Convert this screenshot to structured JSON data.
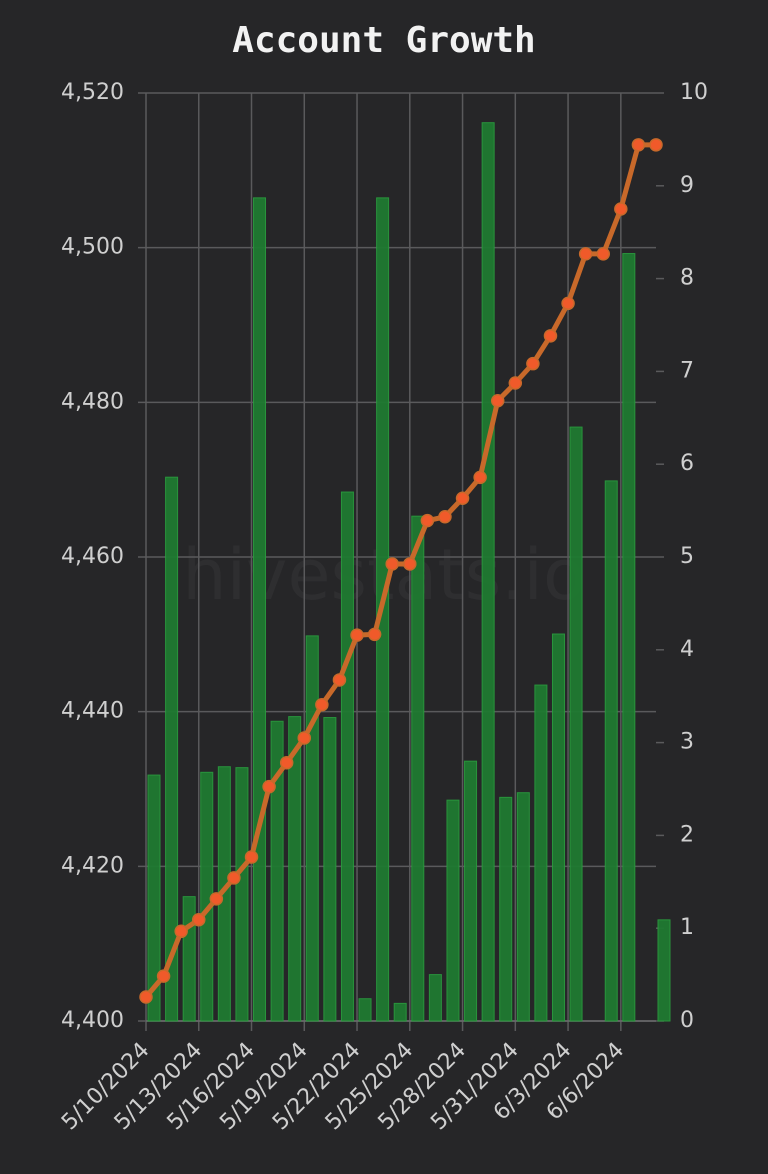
{
  "chart_data": {
    "type": "bar-line",
    "title": "Account Growth",
    "watermark": "hivestats.io",
    "categories": [
      "5/10/2024",
      null,
      null,
      "5/13/2024",
      null,
      null,
      "5/16/2024",
      null,
      null,
      "5/19/2024",
      null,
      null,
      "5/22/2024",
      null,
      null,
      "5/25/2024",
      null,
      null,
      "5/28/2024",
      null,
      null,
      "5/31/2024",
      null,
      null,
      "6/3/2024",
      null,
      null,
      "6/6/2024",
      null,
      null
    ],
    "series": [
      {
        "type": "bar",
        "axis": "y2",
        "color": "#1f7a31",
        "values": [
          2.65,
          5.86,
          1.34,
          2.68,
          2.74,
          2.73,
          8.87,
          3.23,
          3.28,
          4.15,
          3.27,
          5.7,
          0.24,
          8.87,
          0.19,
          5.44,
          0.5,
          2.38,
          2.8,
          9.68,
          2.41,
          2.46,
          3.62,
          4.17,
          6.4,
          0,
          5.82,
          8.27,
          0,
          1.09
        ]
      },
      {
        "type": "line",
        "axis": "y",
        "color": "#c8692a",
        "marker_color": "#f05a2a",
        "values": [
          4403.1,
          4405.8,
          4411.6,
          4413.1,
          4415.8,
          4418.5,
          4421.2,
          4430.3,
          4433.4,
          4436.6,
          4440.9,
          4444.1,
          4449.9,
          4450.0,
          4459.1,
          4459.1,
          4464.7,
          4465.2,
          4467.6,
          4470.3,
          4480.2,
          4482.5,
          4485.0,
          4488.6,
          4492.8,
          4499.2,
          4499.2,
          4505.0,
          4513.3,
          4513.3
        ]
      }
    ],
    "ylim": [
      4400,
      4520
    ],
    "yticks": [
      {
        "value": 4400,
        "label": "4,400"
      },
      {
        "value": 4420,
        "label": "4,420"
      },
      {
        "value": 4440,
        "label": "4,440"
      },
      {
        "value": 4460,
        "label": "4,460"
      },
      {
        "value": 4480,
        "label": "4,480"
      },
      {
        "value": 4500,
        "label": "4,500"
      },
      {
        "value": 4520,
        "label": "4,520"
      }
    ],
    "y2lim": [
      0,
      10
    ],
    "y2ticks": [
      0,
      1,
      2,
      3,
      4,
      5,
      6,
      7,
      8,
      9,
      10
    ],
    "grid": true
  }
}
